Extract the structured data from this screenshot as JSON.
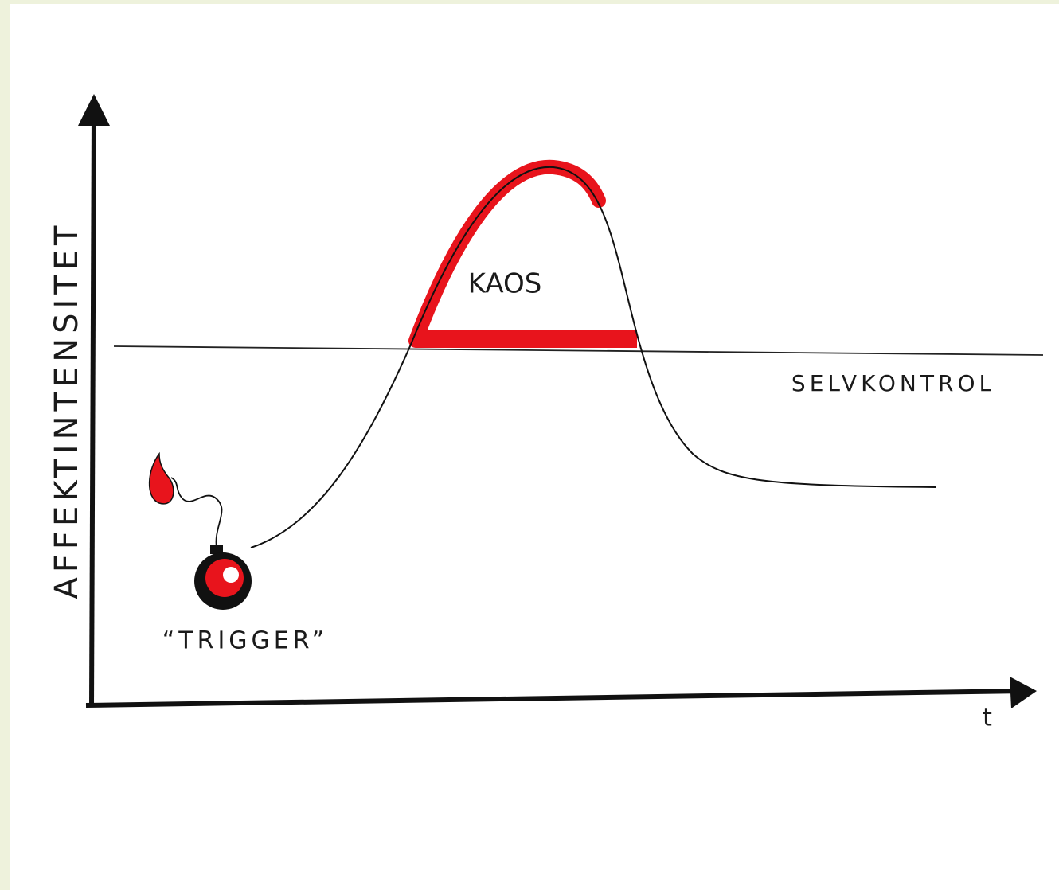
{
  "y_axis_label": "AFFEKTINTENSITET",
  "x_axis_label": "t",
  "labels": {
    "chaos": "KAOS",
    "self_control": "SELVKONTROL",
    "trigger": "“TRIGGER”"
  }
}
